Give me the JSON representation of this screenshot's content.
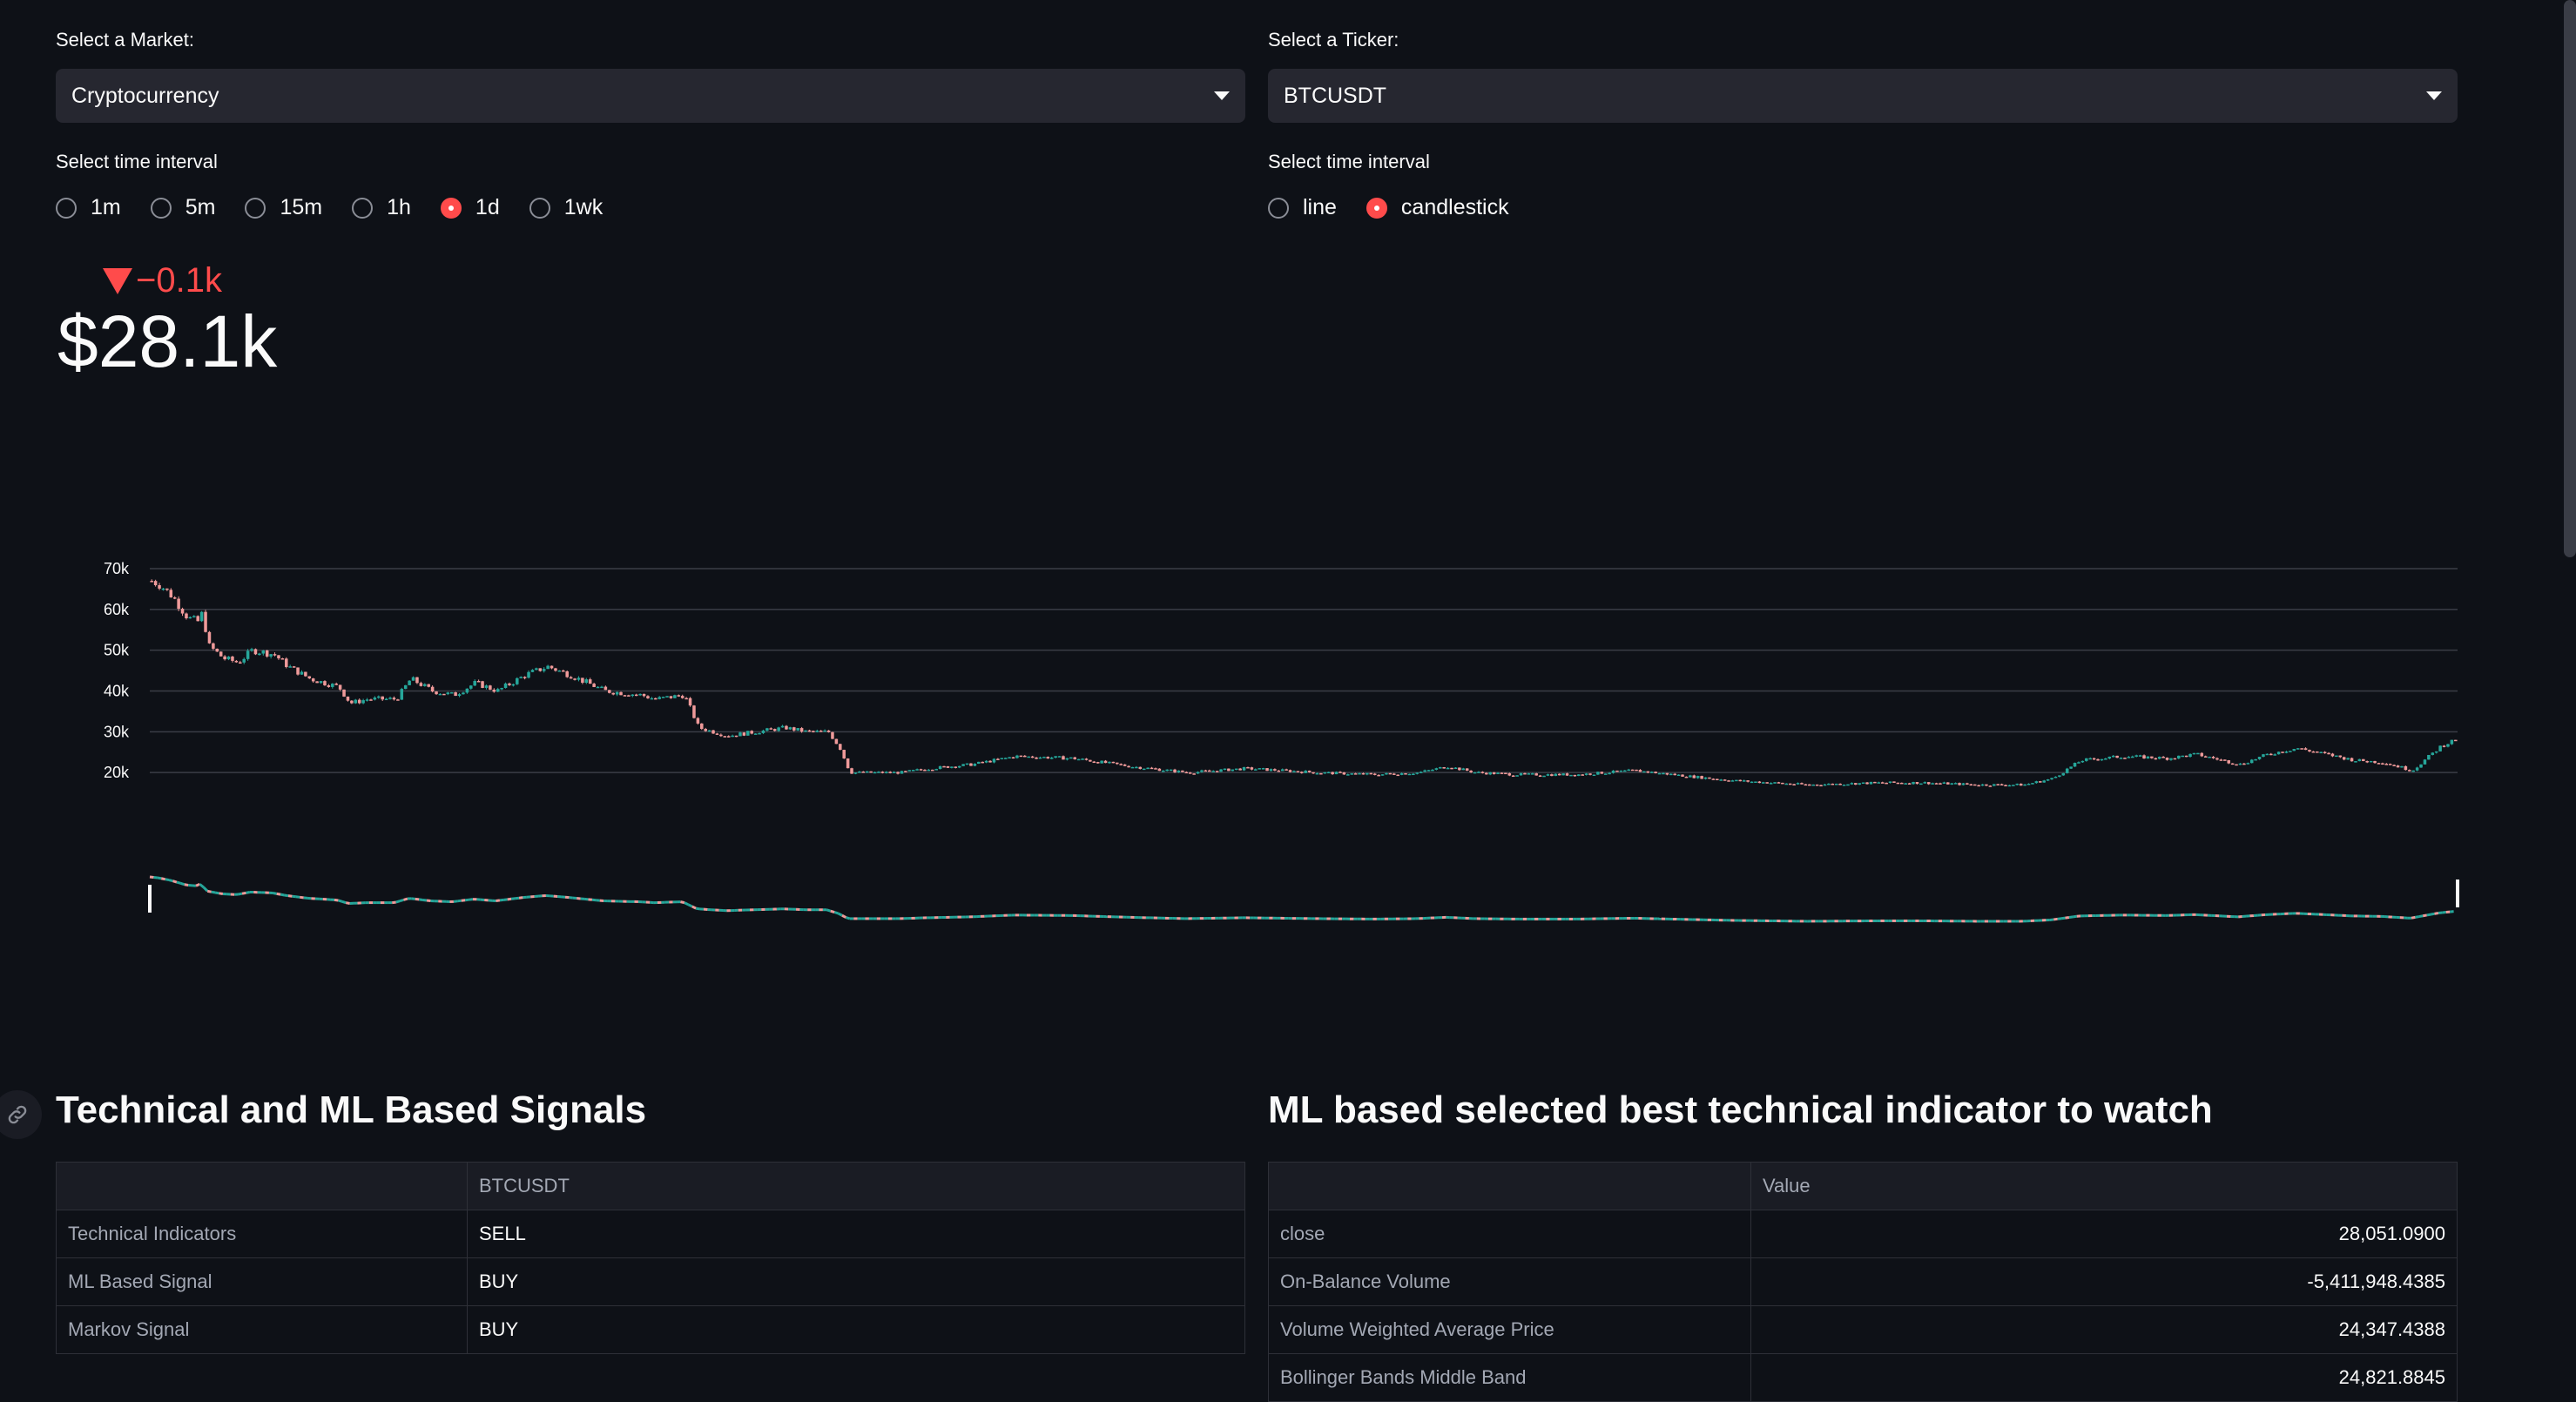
{
  "market": {
    "label": "Select a Market:",
    "value": "Cryptocurrency"
  },
  "ticker": {
    "label": "Select a Ticker:",
    "value": "BTCUSDT"
  },
  "interval": {
    "label": "Select time interval",
    "options": [
      "1m",
      "5m",
      "15m",
      "1h",
      "1d",
      "1wk"
    ],
    "selected": "1d"
  },
  "chart_type": {
    "label": "Select time interval",
    "options": [
      "line",
      "candlestick"
    ],
    "selected": "candlestick"
  },
  "metric": {
    "delta": "−0.1k",
    "value": "$28.1k"
  },
  "colors": {
    "up": "#26a69a",
    "down": "#ef9a9a",
    "accent": "#ff4b4b",
    "background": "#0e1117"
  },
  "chart_data": {
    "type": "candlestick",
    "title": "",
    "series_name": "BTCUSDT",
    "yticks": [
      "70k",
      "60k",
      "50k",
      "40k",
      "30k",
      "20k"
    ],
    "ylim": [
      10000,
      70000
    ],
    "x_count": 600,
    "close_profile": [
      [
        0,
        67000
      ],
      [
        6,
        66000
      ],
      [
        15,
        63000
      ],
      [
        25,
        58000
      ],
      [
        32,
        57000
      ],
      [
        35,
        59000
      ],
      [
        36,
        56000
      ],
      [
        38,
        55000
      ],
      [
        40,
        51000
      ],
      [
        50,
        48000
      ],
      [
        60,
        47000
      ],
      [
        70,
        50000
      ],
      [
        85,
        49000
      ],
      [
        95,
        46000
      ],
      [
        110,
        43000
      ],
      [
        130,
        41000
      ],
      [
        138,
        37000
      ],
      [
        150,
        38000
      ],
      [
        170,
        38000
      ],
      [
        180,
        43000
      ],
      [
        195,
        40000
      ],
      [
        210,
        39000
      ],
      [
        225,
        42000
      ],
      [
        240,
        40000
      ],
      [
        260,
        44000
      ],
      [
        275,
        46000
      ],
      [
        290,
        44000
      ],
      [
        315,
        40000
      ],
      [
        340,
        39000
      ],
      [
        350,
        38000
      ],
      [
        370,
        39000
      ],
      [
        380,
        31000
      ],
      [
        400,
        29000
      ],
      [
        420,
        30000
      ],
      [
        440,
        31000
      ],
      [
        455,
        30000
      ],
      [
        470,
        30000
      ],
      [
        478,
        26000
      ],
      [
        485,
        20000
      ],
      [
        500,
        20000
      ],
      [
        520,
        20000
      ],
      [
        540,
        21000
      ],
      [
        570,
        22000
      ],
      [
        600,
        24000
      ],
      [
        640,
        23500
      ],
      [
        680,
        21500
      ],
      [
        720,
        20000
      ],
      [
        760,
        21000
      ],
      [
        810,
        20000
      ],
      [
        850,
        19500
      ],
      [
        880,
        20000
      ],
      [
        900,
        21500
      ],
      [
        920,
        20000
      ],
      [
        950,
        19500
      ],
      [
        990,
        19500
      ],
      [
        1030,
        20500
      ],
      [
        1070,
        19000
      ],
      [
        1100,
        18000
      ],
      [
        1150,
        17000
      ],
      [
        1200,
        17500
      ],
      [
        1230,
        17500
      ],
      [
        1270,
        17000
      ],
      [
        1300,
        17000
      ],
      [
        1320,
        18500
      ],
      [
        1340,
        23000
      ],
      [
        1370,
        24000
      ],
      [
        1400,
        23500
      ],
      [
        1420,
        24500
      ],
      [
        1450,
        22000
      ],
      [
        1470,
        24500
      ],
      [
        1490,
        26000
      ],
      [
        1530,
        23000
      ],
      [
        1550,
        22500
      ],
      [
        1570,
        20500
      ],
      [
        1590,
        26500
      ],
      [
        1600,
        28100
      ]
    ],
    "volume": "small line-style overview at chart bottom"
  },
  "signals": {
    "title": "Technical and ML Based Signals",
    "column": "BTCUSDT",
    "rows": [
      {
        "name": "Technical Indicators",
        "value": "SELL"
      },
      {
        "name": "ML Based Signal",
        "value": "BUY"
      },
      {
        "name": "Markov Signal",
        "value": "BUY"
      }
    ]
  },
  "indicators": {
    "title": "ML based selected best technical indicator to watch",
    "column": "Value",
    "rows": [
      {
        "name": "close",
        "value": "28,051.0900"
      },
      {
        "name": "On-Balance Volume",
        "value": "-5,411,948.4385"
      },
      {
        "name": "Volume Weighted Average Price",
        "value": "24,347.4388"
      },
      {
        "name": "Bollinger Bands Middle Band",
        "value": "24,821.8845"
      }
    ]
  }
}
